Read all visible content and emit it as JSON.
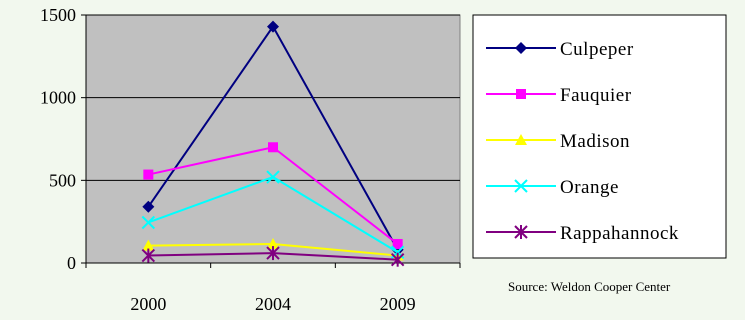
{
  "chart_data": {
    "type": "line",
    "categories": [
      "2000",
      "2004",
      "2009"
    ],
    "series": [
      {
        "name": "Culpeper",
        "values": [
          340,
          1430,
          80
        ],
        "color": "#000080",
        "marker": "diamond"
      },
      {
        "name": "Fauquier",
        "values": [
          535,
          700,
          115
        ],
        "color": "#ff00ff",
        "marker": "square"
      },
      {
        "name": "Madison",
        "values": [
          105,
          115,
          45
        ],
        "color": "#ffff00",
        "marker": "triangle"
      },
      {
        "name": "Orange",
        "values": [
          245,
          520,
          65
        ],
        "color": "#00ffff",
        "marker": "x"
      },
      {
        "name": "Rappahannock",
        "values": [
          45,
          60,
          20
        ],
        "color": "#800080",
        "marker": "star"
      }
    ],
    "ylim": [
      0,
      1500
    ],
    "yticks": [
      "0",
      "500",
      "1000",
      "1500"
    ],
    "grid": true,
    "plot_background": "#c0c0c0",
    "legend_position": "right",
    "annotation": "Source: Weldon Cooper Center"
  }
}
